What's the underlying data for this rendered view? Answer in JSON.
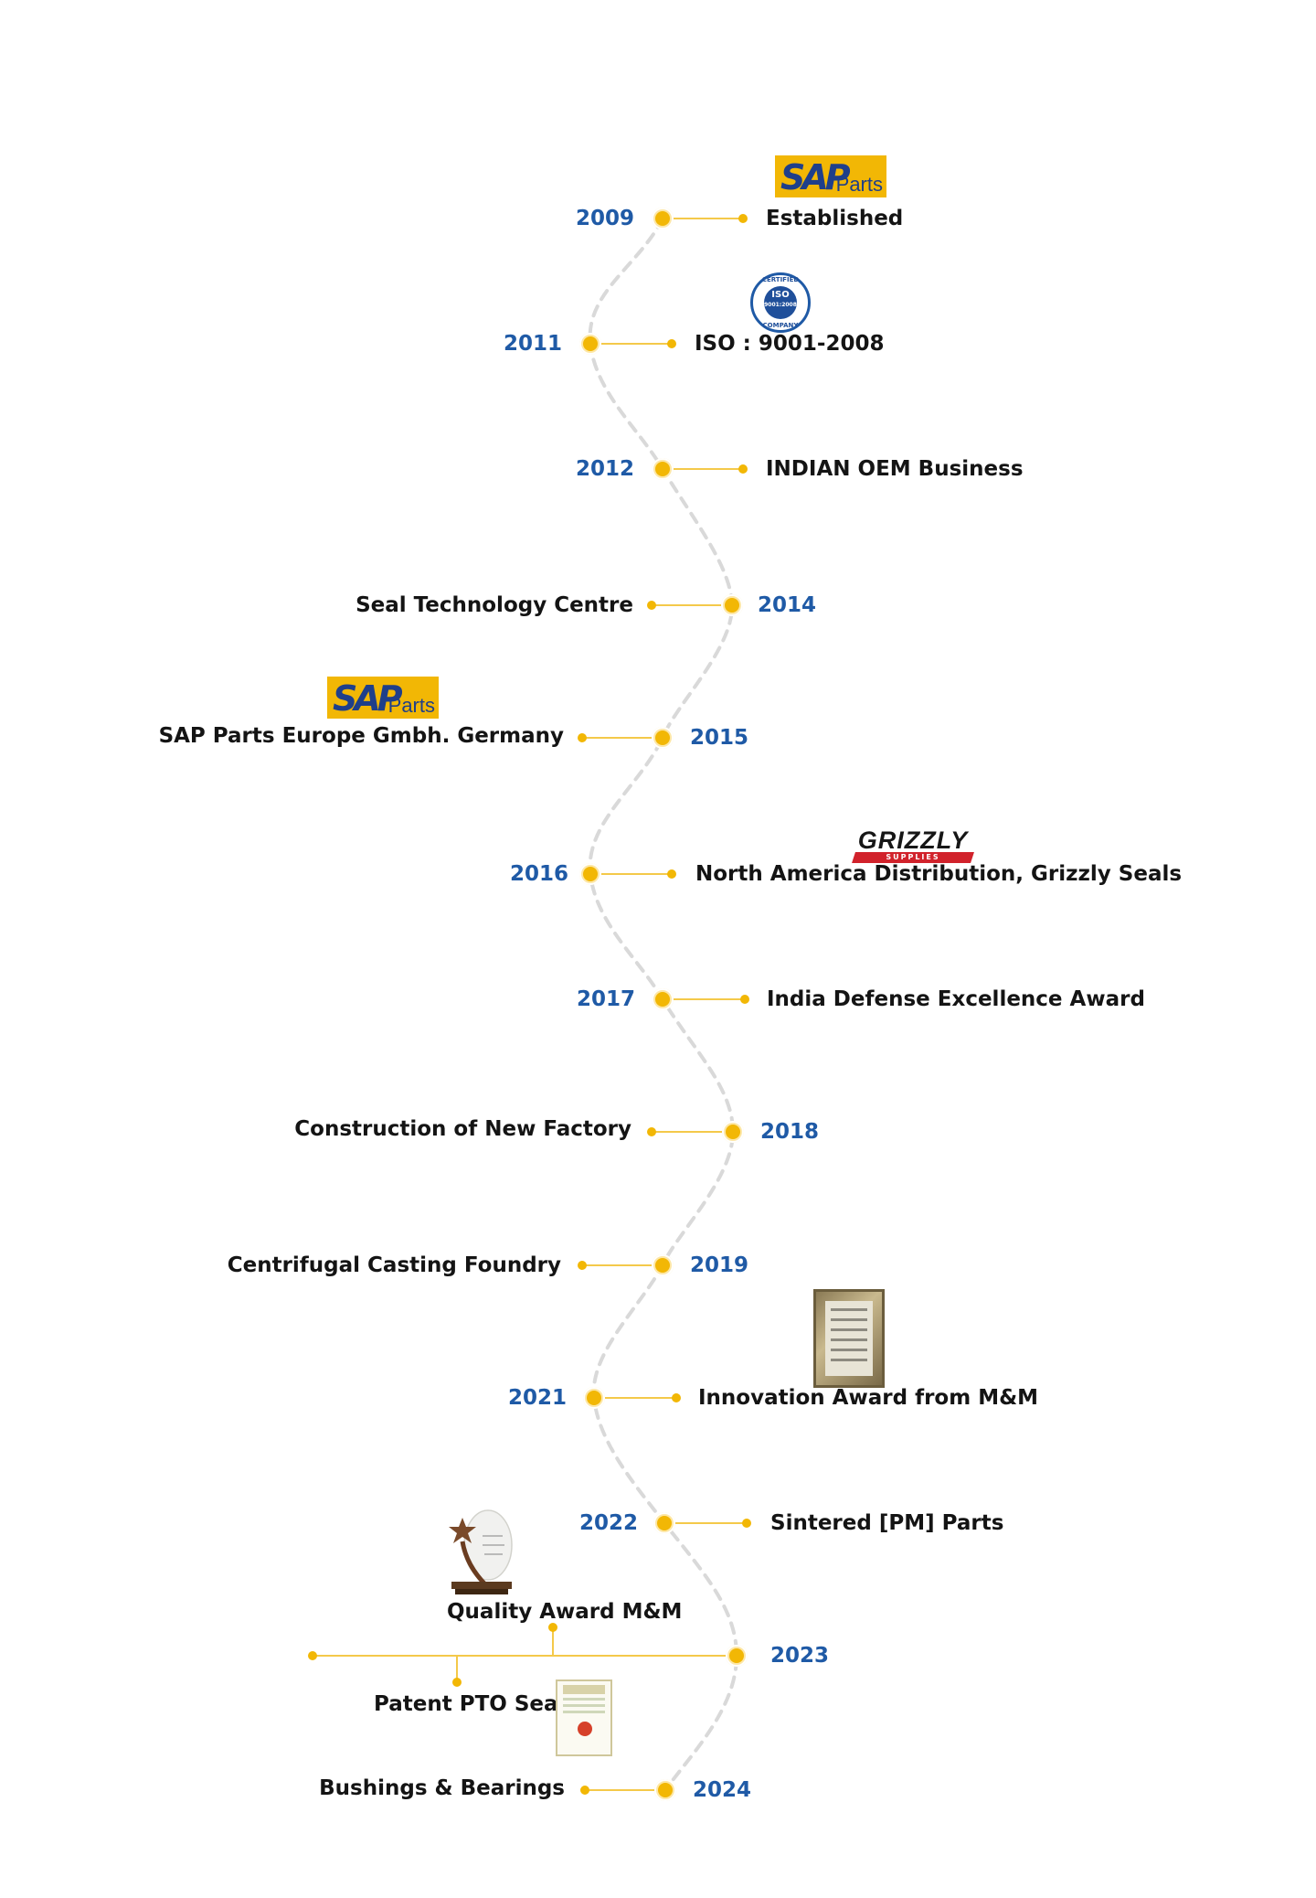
{
  "colors": {
    "accent": "#f4c94a",
    "accent_dark": "#f2b705",
    "year_text": "#1f5aa6",
    "label_text": "#141414",
    "path": "#d9d9d9"
  },
  "milestones": [
    {
      "year": "2009",
      "label": "Established",
      "icon": "sap-parts-logo"
    },
    {
      "year": "2011",
      "label": "ISO : 9001-2008",
      "icon": "iso-certified-seal-icon"
    },
    {
      "year": "2012",
      "label": "INDIAN OEM Business"
    },
    {
      "year": "2014",
      "label": "Seal Technology Centre"
    },
    {
      "year": "2015",
      "label": "SAP Parts Europe Gmbh. Germany",
      "icon": "sap-parts-logo"
    },
    {
      "year": "2016",
      "label": "North America Distribution, Grizzly Seals",
      "icon": "grizzly-supplies-logo"
    },
    {
      "year": "2017",
      "label": "India Defense Excellence Award"
    },
    {
      "year": "2018",
      "label": "Construction of New Factory"
    },
    {
      "year": "2019",
      "label": "Centrifugal Casting Foundry"
    },
    {
      "year": "2021",
      "label": "Innovation Award from M&M",
      "icon": "award-plaque-icon"
    },
    {
      "year": "2022",
      "label": "Sintered [PM] Parts"
    },
    {
      "year": "2023",
      "labels": [
        "Quality Award M&M",
        "Patent PTO Seal"
      ],
      "icons": [
        "trophy-icon",
        "certificate-icon"
      ]
    },
    {
      "year": "2024",
      "label": "Bushings & Bearings"
    }
  ],
  "logos": {
    "sap_main": "SAP",
    "sap_sub": "Parts",
    "iso_top": "CERTIFIED",
    "iso_mid": "ISO",
    "iso_num": "9001:2008",
    "iso_bottom": "COMPANY",
    "grizzly_word": "GRIZZLY",
    "grizzly_sub": "SUPPLIES"
  }
}
